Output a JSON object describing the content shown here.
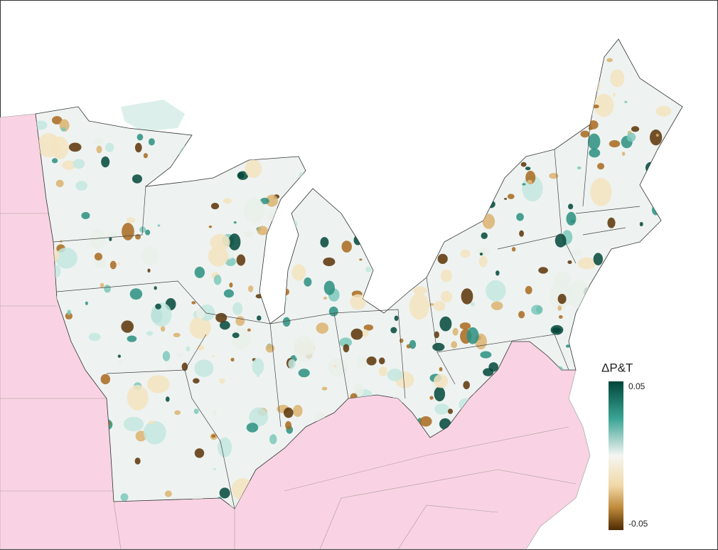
{
  "legend": {
    "title": "ΔP&T",
    "lim": [
      -0.05,
      0.05
    ],
    "ticks": [
      0.05,
      -0.05
    ]
  }
}
